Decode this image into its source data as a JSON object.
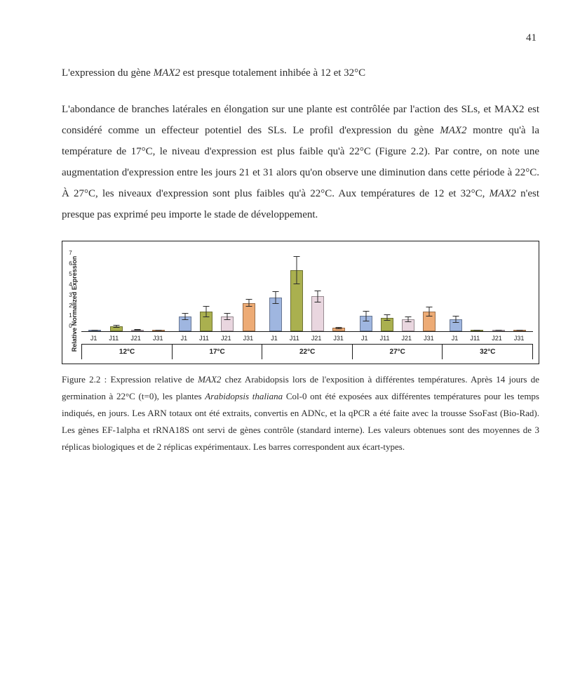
{
  "page_number": "41",
  "section_title_parts": [
    "L'expression du gène ",
    "MAX2",
    " est presque totalement inhibée à 12 et 32°C"
  ],
  "body_paragraph_parts": [
    "L'abondance de branches latérales en élongation sur une plante est contrôlée par l'action des SLs, et MAX2 est considéré comme un effecteur potentiel des SLs. Le profil d'expression du gène ",
    "MAX2",
    " montre qu'à la température de 17°C, le niveau d'expression est plus faible qu'à 22°C (Figure 2.2). Par contre, on note une augmentation d'expression entre les jours 21 et 31 alors qu'on observe une diminution dans cette période à 22°C. À 27°C, les niveaux d'expression sont plus faibles qu'à 22°C. Aux températures de 12 et 32°C, ",
    "MAX2",
    " n'est presque pas exprimé peu importe le stade de développement."
  ],
  "chart": {
    "type": "bar",
    "ylabel": "Relative Normalized Expression",
    "ymax": 7.6,
    "yticks": [
      "7",
      "6",
      "5",
      "4",
      "3",
      "2",
      "1",
      "0"
    ],
    "bar_colors": [
      "#9fb6e0",
      "#aab04f",
      "#e9d6df",
      "#edab75"
    ],
    "bar_border": "rgba(0,0,0,0.35)",
    "axis_color": "#1b1b1b",
    "background_color": "#ffffff",
    "xlabels": [
      "J1",
      "J11",
      "J21",
      "J31"
    ],
    "groups": [
      {
        "temp": "12°C",
        "values": [
          0.1,
          0.45,
          0.12,
          0.08
        ],
        "errs": [
          0.05,
          0.12,
          0.05,
          0.04
        ]
      },
      {
        "temp": "17°C",
        "values": [
          1.35,
          1.8,
          1.35,
          2.6
        ],
        "errs": [
          0.3,
          0.5,
          0.35,
          0.35
        ]
      },
      {
        "temp": "22°C",
        "values": [
          3.1,
          5.6,
          3.2,
          0.3
        ],
        "errs": [
          0.6,
          1.3,
          0.55,
          0.1
        ]
      },
      {
        "temp": "27°C",
        "values": [
          1.4,
          1.25,
          1.1,
          1.8
        ],
        "errs": [
          0.5,
          0.3,
          0.25,
          0.45
        ]
      },
      {
        "temp": "32°C",
        "values": [
          1.1,
          0.1,
          0.1,
          0.08
        ],
        "errs": [
          0.35,
          0.05,
          0.05,
          0.04
        ]
      }
    ]
  },
  "caption_parts": [
    "Figure 2.2 : Expression relative de ",
    "MAX2",
    " chez Arabidopsis lors de l'exposition à différentes températures. Après 14 jours de germination à 22°C (t=0), les plantes ",
    "Arabidopsis thaliana",
    " Col-0 ont été exposées aux différentes températures pour les temps indiqués, en jours. Les ARN totaux ont été extraits, convertis en ADNc, et la qPCR a été faite avec la trousse SsoFast (Bio-Rad). Les gènes EF-1alpha et rRNA18S ont servi de gènes contrôle (standard interne). Les valeurs obtenues sont des moyennes de 3 réplicas biologiques et de 2 réplicas expérimentaux. Les barres correspondent aux écart-types."
  ]
}
